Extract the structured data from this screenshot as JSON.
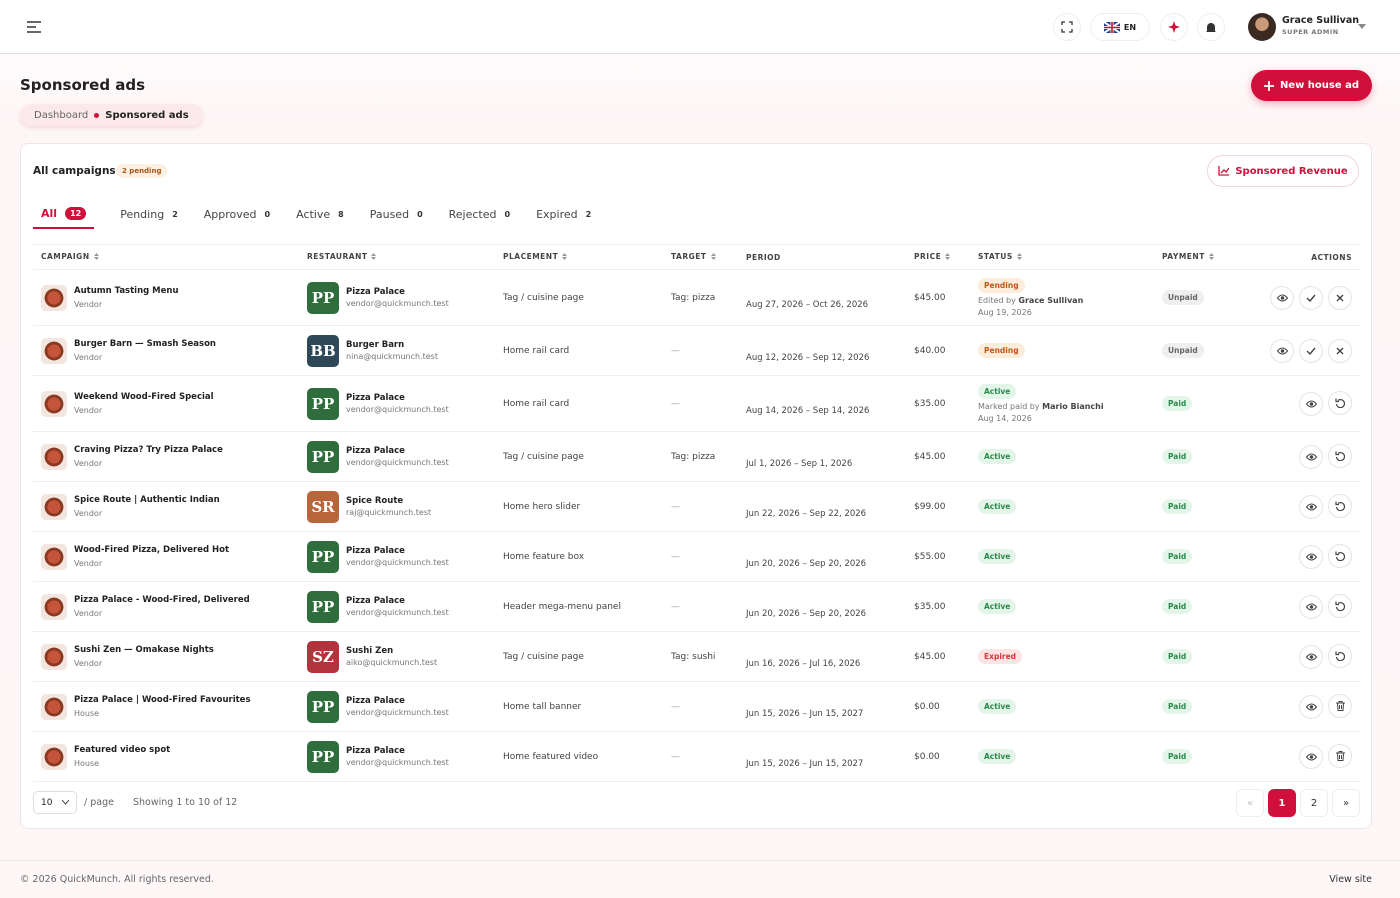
{
  "header": {
    "language": "EN",
    "user_name": "Grace Sullivan",
    "user_role": "SUPER ADMIN"
  },
  "page": {
    "title": "Sponsored ads",
    "breadcrumb": [
      "Dashboard",
      "Sponsored ads"
    ],
    "new_button": "New house ad"
  },
  "card": {
    "title": "All campaigns",
    "pending_badge": "2 pending",
    "revenue_button": "Sponsored Revenue"
  },
  "tabs": [
    {
      "label": "All",
      "count": 12,
      "active": true
    },
    {
      "label": "Pending",
      "count": 2
    },
    {
      "label": "Approved",
      "count": 0
    },
    {
      "label": "Active",
      "count": 8
    },
    {
      "label": "Paused",
      "count": 0
    },
    {
      "label": "Rejected",
      "count": 0
    },
    {
      "label": "Expired",
      "count": 2
    }
  ],
  "table": {
    "columns": [
      {
        "label": "CAMPAIGN",
        "sortable": true
      },
      {
        "label": "RESTAURANT",
        "sortable": true
      },
      {
        "label": "PLACEMENT",
        "sortable": true
      },
      {
        "label": "TARGET",
        "sortable": true
      },
      {
        "label": "PERIOD"
      },
      {
        "label": "PRICE",
        "sortable": true
      },
      {
        "label": "STATUS",
        "sortable": true
      },
      {
        "label": "PAYMENT",
        "sortable": true
      },
      {
        "label": "ACTIONS"
      }
    ],
    "rows": [
      {
        "campaign": "Autumn Tasting Menu",
        "kind": "Vendor",
        "logo": "PP",
        "restaurant": "Pizza Palace",
        "email": "vendor@quickmunch.test",
        "placement": "Tag / cuisine page",
        "target": "Tag: pizza",
        "period": "Aug 27, 2026 – Oct 26, 2026",
        "price": "$45.00",
        "status": "Pending",
        "note": "Edited by",
        "note_by": "Grace Sullivan",
        "note_date": "Aug 19, 2026",
        "payment": "Unpaid"
      },
      {
        "campaign": "Burger Barn — Smash Season",
        "kind": "Vendor",
        "logo": "BB",
        "restaurant": "Burger Barn",
        "email": "nina@quickmunch.test",
        "placement": "Home rail card",
        "target": "—",
        "period": "Aug 12, 2026 – Sep 12, 2026",
        "price": "$40.00",
        "status": "Pending",
        "payment": "Unpaid"
      },
      {
        "campaign": "Weekend Wood-Fired Special",
        "kind": "Vendor",
        "logo": "PP",
        "restaurant": "Pizza Palace",
        "email": "vendor@quickmunch.test",
        "placement": "Home rail card",
        "target": "—",
        "period": "Aug 14, 2026 – Sep 14, 2026",
        "price": "$35.00",
        "status": "Active",
        "note": "Marked paid by",
        "note_by": "Mario Bianchi",
        "note_date": "Aug 14, 2026",
        "payment": "Paid"
      },
      {
        "campaign": "Craving Pizza? Try Pizza Palace",
        "kind": "Vendor",
        "logo": "PP",
        "restaurant": "Pizza Palace",
        "email": "vendor@quickmunch.test",
        "placement": "Tag / cuisine page",
        "target": "Tag: pizza",
        "period": "Jul 1, 2026 – Sep 1, 2026",
        "price": "$45.00",
        "status": "Active",
        "payment": "Paid"
      },
      {
        "campaign": "Spice Route | Authentic Indian",
        "kind": "Vendor",
        "logo": "SR",
        "restaurant": "Spice Route",
        "email": "raj@quickmunch.test",
        "placement": "Home hero slider",
        "target": "—",
        "period": "Jun 22, 2026 – Sep 22, 2026",
        "price": "$99.00",
        "status": "Active",
        "payment": "Paid"
      },
      {
        "campaign": "Wood-Fired Pizza, Delivered Hot",
        "kind": "Vendor",
        "logo": "PP",
        "restaurant": "Pizza Palace",
        "email": "vendor@quickmunch.test",
        "placement": "Home feature box",
        "target": "—",
        "period": "Jun 20, 2026 – Sep 20, 2026",
        "price": "$55.00",
        "status": "Active",
        "payment": "Paid"
      },
      {
        "campaign": "Pizza Palace - Wood-Fired, Delivered",
        "kind": "Vendor",
        "logo": "PP",
        "restaurant": "Pizza Palace",
        "email": "vendor@quickmunch.test",
        "placement": "Header mega-menu panel",
        "target": "—",
        "period": "Jun 20, 2026 – Sep 20, 2026",
        "price": "$35.00",
        "status": "Active",
        "payment": "Paid"
      },
      {
        "campaign": "Sushi Zen — Omakase Nights",
        "kind": "Vendor",
        "logo": "SZ",
        "restaurant": "Sushi Zen",
        "email": "aiko@quickmunch.test",
        "placement": "Tag / cuisine page",
        "target": "Tag: sushi",
        "period": "Jun 16, 2026 – Jul 16, 2026",
        "price": "$45.00",
        "status": "Expired",
        "payment": "Paid"
      },
      {
        "campaign": "Pizza Palace | Wood-Fired Favourites",
        "kind": "House",
        "logo": "PP",
        "restaurant": "Pizza Palace",
        "email": "vendor@quickmunch.test",
        "placement": "Home tall banner",
        "target": "—",
        "period": "Jun 15, 2026 – Jun 15, 2027",
        "price": "$0.00",
        "status": "Active",
        "payment": "Paid"
      },
      {
        "campaign": "Featured video spot",
        "kind": "House",
        "logo": "PP",
        "restaurant": "Pizza Palace",
        "email": "vendor@quickmunch.test",
        "placement": "Home featured video",
        "target": "—",
        "period": "Jun 15, 2026 – Jun 15, 2027",
        "price": "$0.00",
        "status": "Active",
        "payment": "Paid"
      }
    ]
  },
  "pagination": {
    "page_size": "10",
    "per_page": "/ page",
    "showing": "Showing 1 to 10 of 12",
    "first": "«",
    "pages": [
      "1",
      "2"
    ],
    "current": "1",
    "next": "»"
  },
  "footer": {
    "copyright": "© 2026 QuickMunch. All rights reserved.",
    "view_site": "View site"
  }
}
